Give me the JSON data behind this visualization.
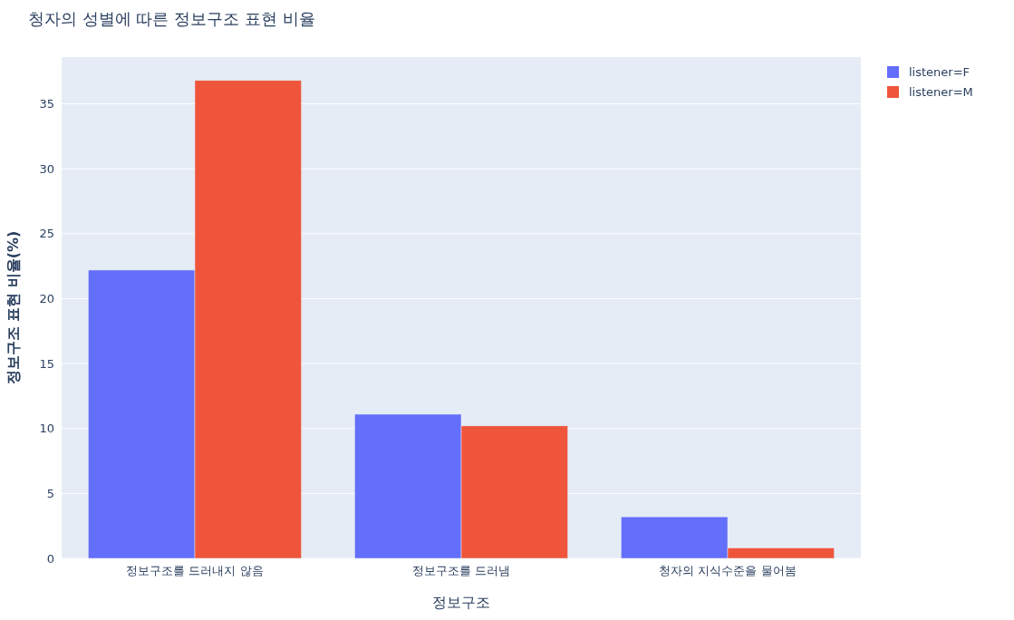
{
  "chart_data": {
    "type": "bar",
    "title": "청자의 성별에 따른 정보구조 표현 비율",
    "xlabel": "정보구조",
    "ylabel": "정보구조 표현 비율(%)",
    "categories": [
      "정보구조를 드러내지 않음",
      "정보구조를 드러냄",
      "청자의 지식수준을 물어봄"
    ],
    "series": [
      {
        "name": "listener=F",
        "color": "#636efa",
        "values": [
          22.2,
          11.1,
          3.2
        ]
      },
      {
        "name": "listener=M",
        "color": "#ef553b",
        "values": [
          36.8,
          10.2,
          0.8
        ]
      }
    ],
    "ylim": [
      0,
      38.6
    ],
    "yticks": [
      0,
      5,
      10,
      15,
      20,
      25,
      30,
      35
    ],
    "grid": "y",
    "legend": "top right"
  }
}
